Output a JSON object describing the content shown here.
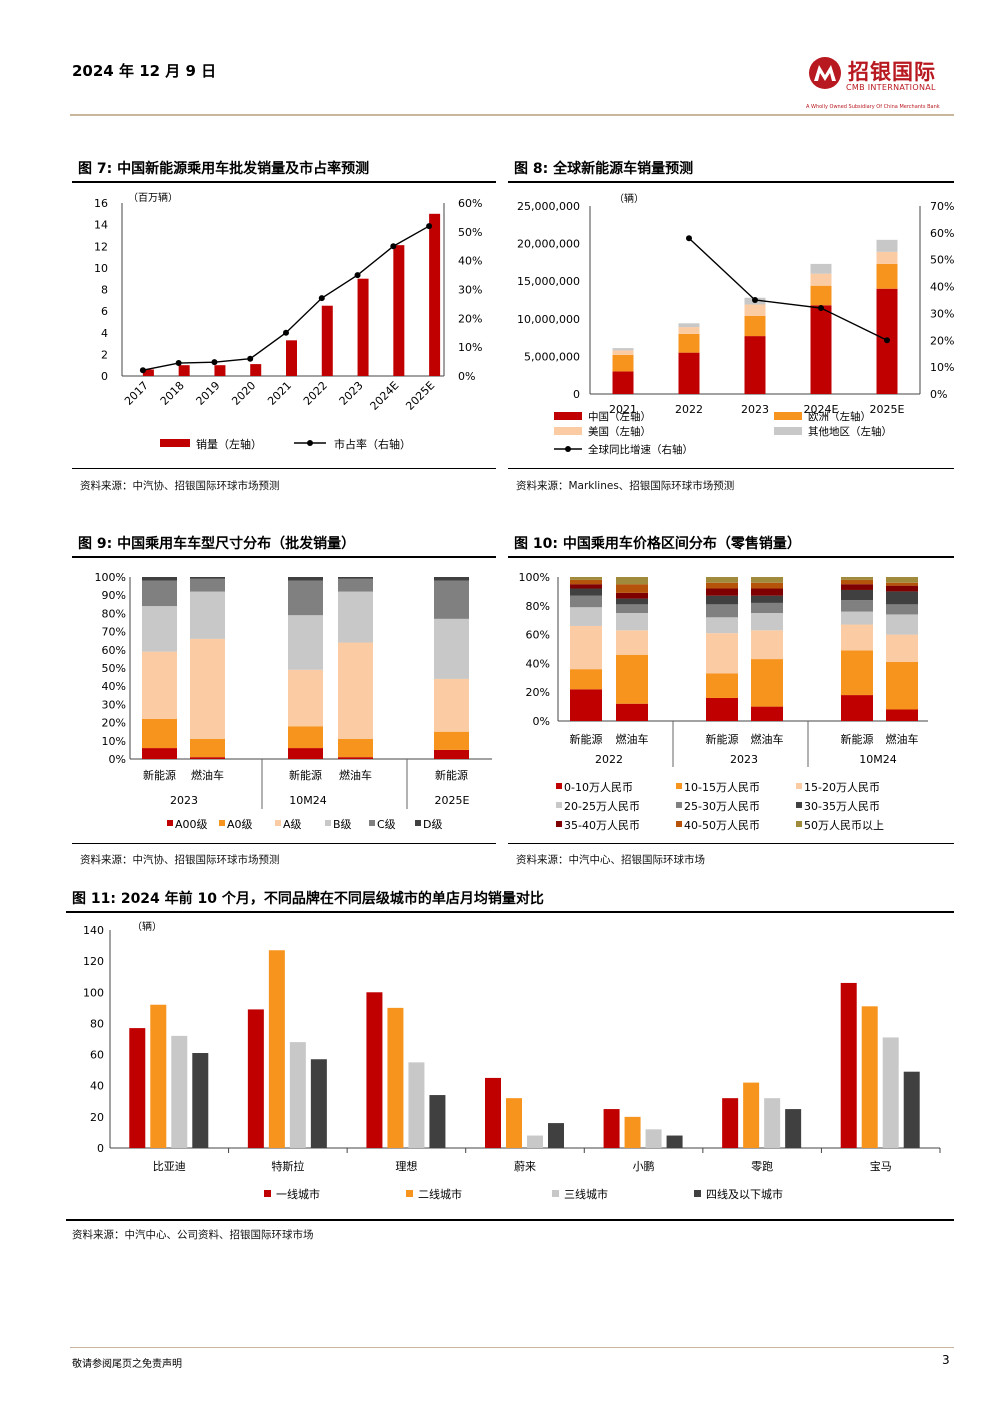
{
  "header": {
    "date": "2024 年 12 月 9 日",
    "logo_cn": "招银国际",
    "logo_en": "CMB INTERNATIONAL",
    "logo_small": "A Wholly Owned Subsidiary Of China Merchants Bank"
  },
  "footer": {
    "disclaimer": "敬请参阅尾页之免责声明",
    "page": "3"
  },
  "colors": {
    "red": "#c00000",
    "orange": "#f7941d",
    "peach": "#fbcba3",
    "lightgray": "#c8c8c8",
    "gray": "#808080",
    "dark": "#404040",
    "darkred": "#7f0000",
    "brown": "#b45309",
    "olive": "#a08a3c"
  },
  "fig7": {
    "title": "图 7: 中国新能源乘用车批发销量及市占率预测",
    "source": "资料来源：中汽协、招银国际环球市场预测"
  },
  "fig8": {
    "title": "图 8: 全球新能源车销量预测",
    "source": "资料来源：Marklines、招银国际环球市场预测"
  },
  "fig9": {
    "title": "图 9: 中国乘用车车型尺寸分布（批发销量）",
    "source": "资料来源：中汽协、招银国际环球市场预测"
  },
  "fig10": {
    "title": "图 10: 中国乘用车价格区间分布（零售销量）",
    "source": "资料来源：中汽中心、招银国际环球市场"
  },
  "fig11": {
    "title": "图 11: 2024 年前 10 个月，不同品牌在不同层级城市的单店月均销量对比",
    "source": "资料来源：中汽中心、公司资料、招银国际环球市场"
  },
  "chart_data": [
    {
      "id": "fig7",
      "type": "bar+line",
      "unit_left": "（百万辆）",
      "categories": [
        "2017",
        "2018",
        "2019",
        "2020",
        "2021",
        "2022",
        "2023",
        "2024E",
        "2025E"
      ],
      "series": [
        {
          "name": "销量（左轴）",
          "type": "bar",
          "axis": "left",
          "values": [
            0.6,
            1.0,
            1.0,
            1.1,
            3.3,
            6.5,
            9.0,
            12.1,
            15.0
          ]
        },
        {
          "name": "市占率（右轴）",
          "type": "line",
          "axis": "right",
          "values": [
            0.02,
            0.045,
            0.048,
            0.06,
            0.15,
            0.27,
            0.35,
            0.45,
            0.52
          ]
        }
      ],
      "ylim_left": [
        0,
        16
      ],
      "yticks_left": [
        "0",
        "2",
        "4",
        "6",
        "8",
        "10",
        "12",
        "14",
        "16"
      ],
      "ylim_right": [
        0,
        0.6
      ],
      "yticks_right": [
        "0%",
        "10%",
        "20%",
        "30%",
        "40%",
        "50%",
        "60%"
      ]
    },
    {
      "id": "fig8",
      "type": "stacked-bar+line",
      "unit_left": "（辆）",
      "categories": [
        "2021",
        "2022",
        "2023",
        "2024E",
        "2025E"
      ],
      "series": [
        {
          "name": "中国（左轴）",
          "type": "bar",
          "values": [
            3000000,
            5500000,
            7700000,
            11800000,
            14000000
          ]
        },
        {
          "name": "欧洲（左轴）",
          "type": "bar",
          "values": [
            2200000,
            2500000,
            2700000,
            2600000,
            3300000
          ]
        },
        {
          "name": "美国（左轴）",
          "type": "bar",
          "values": [
            600000,
            900000,
            1500000,
            1600000,
            1600000
          ]
        },
        {
          "name": "其他地区（左轴）",
          "type": "bar",
          "values": [
            300000,
            500000,
            900000,
            1300000,
            1600000
          ]
        },
        {
          "name": "全球同比增速（右轴）",
          "type": "line",
          "values": [
            null,
            0.58,
            0.35,
            0.32,
            0.2
          ]
        }
      ],
      "ylim_left": [
        0,
        25000000
      ],
      "yticks_left": [
        "0",
        "5,000,000",
        "10,000,000",
        "15,000,000",
        "20,000,000",
        "25,000,000"
      ],
      "ylim_right": [
        0,
        0.7
      ],
      "yticks_right": [
        "0%",
        "10%",
        "20%",
        "30%",
        "40%",
        "50%",
        "60%",
        "70%"
      ]
    },
    {
      "id": "fig9",
      "type": "stacked-bar-100",
      "groups": [
        "2023",
        "10M24",
        "2025E"
      ],
      "bars": [
        {
          "label": "新能源",
          "group": "2023",
          "values": [
            0.06,
            0.16,
            0.37,
            0.25,
            0.14,
            0.02
          ]
        },
        {
          "label": "燃油车",
          "group": "2023",
          "values": [
            0.01,
            0.1,
            0.55,
            0.26,
            0.07,
            0.01
          ]
        },
        {
          "label": "新能源",
          "group": "10M24",
          "values": [
            0.06,
            0.12,
            0.31,
            0.3,
            0.19,
            0.02
          ]
        },
        {
          "label": "燃油车",
          "group": "10M24",
          "values": [
            0.01,
            0.1,
            0.53,
            0.28,
            0.07,
            0.01
          ]
        },
        {
          "label": "新能源",
          "group": "2025E",
          "values": [
            0.05,
            0.1,
            0.29,
            0.33,
            0.21,
            0.02
          ]
        }
      ],
      "series": [
        "A00级",
        "A0级",
        "A级",
        "B级",
        "C级",
        "D级"
      ],
      "yticks": [
        "0%",
        "10%",
        "20%",
        "30%",
        "40%",
        "50%",
        "60%",
        "70%",
        "80%",
        "90%",
        "100%"
      ]
    },
    {
      "id": "fig10",
      "type": "stacked-bar-100",
      "groups": [
        "2022",
        "2023",
        "10M24"
      ],
      "bars": [
        {
          "label": "新能源",
          "group": "2022",
          "values": [
            0.22,
            0.14,
            0.3,
            0.13,
            0.08,
            0.05,
            0.03,
            0.03,
            0.02
          ]
        },
        {
          "label": "燃油车",
          "group": "2022",
          "values": [
            0.12,
            0.34,
            0.17,
            0.12,
            0.06,
            0.04,
            0.04,
            0.06,
            0.05
          ]
        },
        {
          "label": "新能源",
          "group": "2023",
          "values": [
            0.16,
            0.17,
            0.28,
            0.11,
            0.09,
            0.06,
            0.05,
            0.04,
            0.04
          ]
        },
        {
          "label": "燃油车",
          "group": "2023",
          "values": [
            0.1,
            0.33,
            0.2,
            0.12,
            0.07,
            0.05,
            0.05,
            0.04,
            0.04
          ]
        },
        {
          "label": "新能源",
          "group": "10M24",
          "values": [
            0.18,
            0.31,
            0.18,
            0.09,
            0.08,
            0.07,
            0.04,
            0.03,
            0.02
          ]
        },
        {
          "label": "燃油车",
          "group": "10M24",
          "values": [
            0.08,
            0.33,
            0.19,
            0.14,
            0.07,
            0.09,
            0.04,
            0.02,
            0.04
          ]
        }
      ],
      "series": [
        "0-10万人民币",
        "10-15万人民币",
        "15-20万人民币",
        "20-25万人民币",
        "25-30万人民币",
        "30-35万人民币",
        "35-40万人民币",
        "40-50万人民币",
        "50万人民币以上"
      ],
      "yticks": [
        "0%",
        "20%",
        "40%",
        "60%",
        "80%",
        "100%"
      ]
    },
    {
      "id": "fig11",
      "type": "bar",
      "unit_left": "（辆）",
      "categories": [
        "比亚迪",
        "特斯拉",
        "理想",
        "蔚来",
        "小鹏",
        "零跑",
        "宝马"
      ],
      "series": [
        {
          "name": "一线城市",
          "values": [
            77,
            89,
            100,
            45,
            25,
            32,
            106
          ]
        },
        {
          "name": "二线城市",
          "values": [
            92,
            127,
            90,
            32,
            20,
            42,
            91
          ]
        },
        {
          "name": "三线城市",
          "values": [
            72,
            68,
            55,
            8,
            12,
            32,
            71
          ]
        },
        {
          "name": "四线及以下城市",
          "values": [
            61,
            57,
            34,
            16,
            8,
            25,
            49
          ]
        }
      ],
      "ylim": [
        0,
        140
      ],
      "yticks": [
        "0",
        "20",
        "40",
        "60",
        "80",
        "100",
        "120",
        "140"
      ]
    }
  ]
}
